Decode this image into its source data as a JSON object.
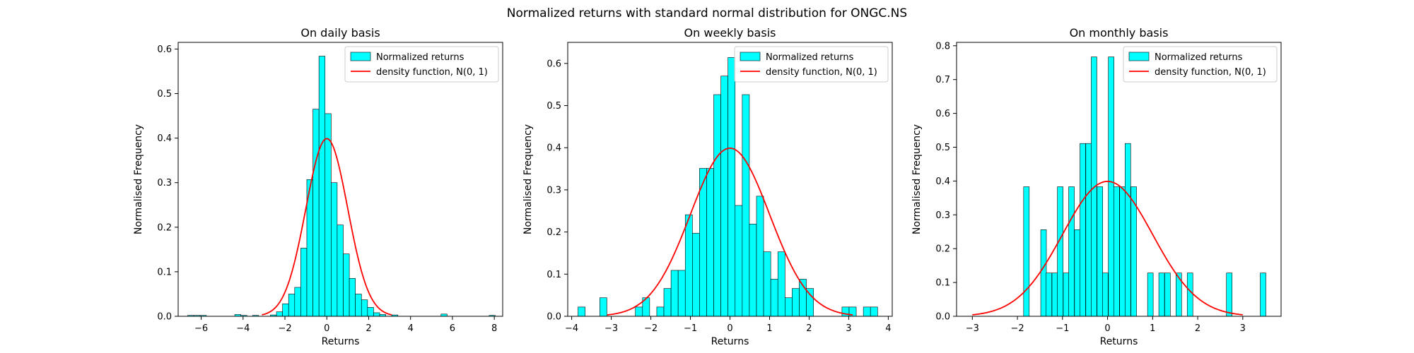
{
  "figure": {
    "suptitle": "Normalized returns with standard normal distribution for ONGC.NS"
  },
  "colors": {
    "bar_fill": "#00ffff",
    "bar_edge": "#000000",
    "curve": "#ff0000"
  },
  "chart_data": [
    {
      "type": "bar",
      "title": "On daily basis",
      "xlabel": "Returns",
      "ylabel": "Normalised Frequency",
      "xlim": [
        -7.1,
        8.4
      ],
      "ylim": [
        0,
        0.615
      ],
      "xticks": [
        -6,
        -4,
        -2,
        0,
        2,
        4,
        6,
        8
      ],
      "yticks": [
        0.0,
        0.1,
        0.2,
        0.3,
        0.4,
        0.5,
        0.6
      ],
      "bin_width": 0.29,
      "legend": {
        "position": "top-right",
        "entries": [
          "Normalized returns",
          "density function, N(0, 1)"
        ]
      },
      "bins": [
        {
          "x": -6.5,
          "y": 0.002
        },
        {
          "x": -6.2,
          "y": 0.002
        },
        {
          "x": -5.9,
          "y": 0.002
        },
        {
          "x": -4.25,
          "y": 0.004
        },
        {
          "x": -3.96,
          "y": 0.002
        },
        {
          "x": -3.4,
          "y": 0.002
        },
        {
          "x": -2.55,
          "y": 0.003
        },
        {
          "x": -2.26,
          "y": 0.01
        },
        {
          "x": -1.97,
          "y": 0.028
        },
        {
          "x": -1.68,
          "y": 0.05
        },
        {
          "x": -1.39,
          "y": 0.065
        },
        {
          "x": -1.1,
          "y": 0.153
        },
        {
          "x": -0.81,
          "y": 0.307
        },
        {
          "x": -0.52,
          "y": 0.465
        },
        {
          "x": -0.23,
          "y": 0.584
        },
        {
          "x": 0.06,
          "y": 0.455
        },
        {
          "x": 0.35,
          "y": 0.3
        },
        {
          "x": 0.64,
          "y": 0.205
        },
        {
          "x": 0.93,
          "y": 0.14
        },
        {
          "x": 1.22,
          "y": 0.085
        },
        {
          "x": 1.51,
          "y": 0.05
        },
        {
          "x": 1.8,
          "y": 0.037
        },
        {
          "x": 2.09,
          "y": 0.02
        },
        {
          "x": 2.38,
          "y": 0.008
        },
        {
          "x": 2.67,
          "y": 0.004
        },
        {
          "x": 3.25,
          "y": 0.003
        },
        {
          "x": 5.6,
          "y": 0.005
        },
        {
          "x": 7.9,
          "y": 0.002
        }
      ],
      "curve": {
        "label": "density function, N(0, 1)",
        "mean": 0,
        "std": 1,
        "x_range": [
          -3.1,
          3.1
        ]
      }
    },
    {
      "type": "bar",
      "title": "On weekly basis",
      "xlabel": "Returns",
      "ylabel": "Normalised Frequency",
      "xlim": [
        -4.1,
        4.1
      ],
      "ylim": [
        0,
        0.65
      ],
      "xticks": [
        -4,
        -3,
        -2,
        -1,
        0,
        1,
        2,
        3,
        4
      ],
      "yticks": [
        0.0,
        0.1,
        0.2,
        0.3,
        0.4,
        0.5,
        0.6
      ],
      "bin_width": 0.18,
      "legend": {
        "position": "top-right",
        "entries": [
          "Normalized returns",
          "density function, N(0, 1)"
        ]
      },
      "bins": [
        {
          "x": -3.75,
          "y": 0.022
        },
        {
          "x": -3.2,
          "y": 0.044
        },
        {
          "x": -2.3,
          "y": 0.022
        },
        {
          "x": -2.12,
          "y": 0.044
        },
        {
          "x": -1.76,
          "y": 0.022
        },
        {
          "x": -1.58,
          "y": 0.066
        },
        {
          "x": -1.4,
          "y": 0.109
        },
        {
          "x": -1.22,
          "y": 0.109
        },
        {
          "x": -1.04,
          "y": 0.241
        },
        {
          "x": -0.86,
          "y": 0.197
        },
        {
          "x": -0.68,
          "y": 0.351
        },
        {
          "x": -0.5,
          "y": 0.351
        },
        {
          "x": -0.32,
          "y": 0.526
        },
        {
          "x": -0.14,
          "y": 0.57
        },
        {
          "x": 0.04,
          "y": 0.614
        },
        {
          "x": 0.22,
          "y": 0.263
        },
        {
          "x": 0.4,
          "y": 0.526
        },
        {
          "x": 0.58,
          "y": 0.219
        },
        {
          "x": 0.76,
          "y": 0.285
        },
        {
          "x": 0.94,
          "y": 0.153
        },
        {
          "x": 1.12,
          "y": 0.088
        },
        {
          "x": 1.3,
          "y": 0.153
        },
        {
          "x": 1.48,
          "y": 0.044
        },
        {
          "x": 1.66,
          "y": 0.066
        },
        {
          "x": 1.84,
          "y": 0.088
        },
        {
          "x": 2.02,
          "y": 0.066
        },
        {
          "x": 2.92,
          "y": 0.022
        },
        {
          "x": 3.1,
          "y": 0.022
        },
        {
          "x": 3.46,
          "y": 0.022
        },
        {
          "x": 3.64,
          "y": 0.022
        }
      ],
      "curve": {
        "label": "density function, N(0, 1)",
        "mean": 0,
        "std": 1,
        "x_range": [
          -3.1,
          3.1
        ]
      }
    },
    {
      "type": "bar",
      "title": "On monthly basis",
      "xlabel": "Returns",
      "ylabel": "Normalised Frequency",
      "xlim": [
        -3.35,
        3.85
      ],
      "ylim": [
        0,
        0.81
      ],
      "xticks": [
        -3,
        -2,
        -1,
        0,
        1,
        2,
        3
      ],
      "yticks": [
        0.0,
        0.1,
        0.2,
        0.3,
        0.4,
        0.5,
        0.6,
        0.7,
        0.8
      ],
      "bin_width": 0.125,
      "legend": {
        "position": "top-right",
        "entries": [
          "Normalized returns",
          "density function, N(0, 1)"
        ]
      },
      "bins": [
        {
          "x": -1.8,
          "y": 0.383
        },
        {
          "x": -1.42,
          "y": 0.256
        },
        {
          "x": -1.3,
          "y": 0.128
        },
        {
          "x": -1.17,
          "y": 0.128
        },
        {
          "x": -1.05,
          "y": 0.383
        },
        {
          "x": -0.92,
          "y": 0.128
        },
        {
          "x": -0.8,
          "y": 0.383
        },
        {
          "x": -0.67,
          "y": 0.256
        },
        {
          "x": -0.55,
          "y": 0.511
        },
        {
          "x": -0.42,
          "y": 0.511
        },
        {
          "x": -0.3,
          "y": 0.767
        },
        {
          "x": -0.17,
          "y": 0.383
        },
        {
          "x": -0.05,
          "y": 0.128
        },
        {
          "x": 0.08,
          "y": 0.767
        },
        {
          "x": 0.2,
          "y": 0.383
        },
        {
          "x": 0.33,
          "y": 0.383
        },
        {
          "x": 0.45,
          "y": 0.511
        },
        {
          "x": 0.58,
          "y": 0.383
        },
        {
          "x": 0.95,
          "y": 0.128
        },
        {
          "x": 1.2,
          "y": 0.128
        },
        {
          "x": 1.33,
          "y": 0.128
        },
        {
          "x": 1.58,
          "y": 0.128
        },
        {
          "x": 1.83,
          "y": 0.128
        },
        {
          "x": 2.7,
          "y": 0.128
        },
        {
          "x": 3.45,
          "y": 0.128
        }
      ],
      "curve": {
        "label": "density function, N(0, 1)",
        "mean": 0,
        "std": 1,
        "x_range": [
          -3.0,
          3.0
        ]
      }
    }
  ]
}
